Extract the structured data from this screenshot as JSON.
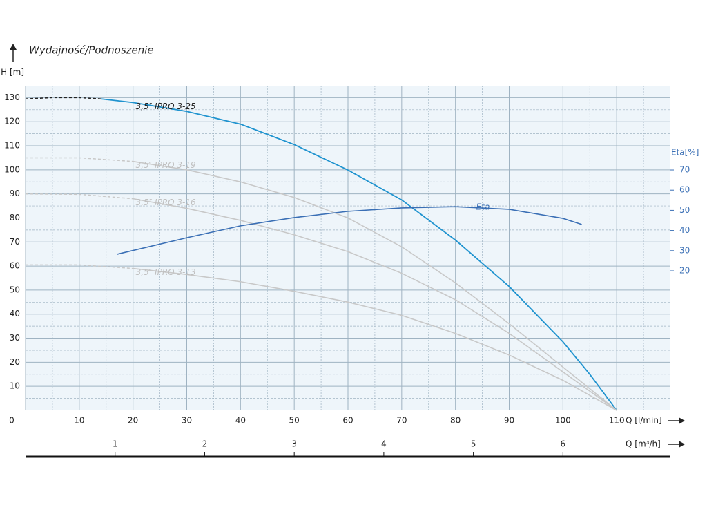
{
  "chart_data": {
    "type": "line",
    "title": "Wydajność/Podnoszenie",
    "ylabel": "H [m]",
    "y2label": "Eta[%]",
    "xlabel": "Q  [l/min]",
    "x2label": "Q  [m³/h]",
    "xlim": [
      0,
      120
    ],
    "xticks": [
      0,
      10,
      20,
      30,
      40,
      50,
      60,
      70,
      80,
      90,
      100,
      110
    ],
    "minor_xticks": [
      5,
      15,
      25,
      35,
      45,
      55,
      65,
      75,
      85,
      95,
      105,
      115
    ],
    "ylim": [
      0,
      135
    ],
    "yticks": [
      10,
      20,
      30,
      40,
      50,
      60,
      70,
      80,
      90,
      100,
      110,
      120,
      130
    ],
    "minor_yticks": [
      5,
      15,
      25,
      35,
      45,
      55,
      65,
      75,
      85,
      95,
      105,
      115,
      125
    ],
    "y2lim": [
      -49.2,
      111.8
    ],
    "y2ticks": [
      20,
      30,
      40,
      50,
      60,
      70
    ],
    "x2lim": [
      0,
      7.2
    ],
    "x2ticks": [
      1,
      2,
      3,
      4,
      5,
      6
    ],
    "grid": true,
    "series": [
      {
        "name": "3,5″ IPRO 3-25",
        "color": "#1f93cf",
        "label_color": "#222222",
        "x": [
          14,
          20,
          30,
          40,
          50,
          60,
          70,
          80,
          90,
          100,
          105,
          110
        ],
        "values": [
          129.5,
          128,
          124.3,
          119,
          110.5,
          99.9,
          87.5,
          70.8,
          51.5,
          28.5,
          15,
          0
        ],
        "dashed_part": {
          "color": "#222222",
          "x": [
            0,
            5,
            10,
            14
          ],
          "values": [
            129.5,
            130,
            130,
            129.5
          ]
        }
      },
      {
        "name": "3,5″ IPRO 3-19",
        "color": "#c8c8c8",
        "label_color": "#c0c0c0",
        "x": [
          20,
          30,
          40,
          50,
          60,
          70,
          80,
          90,
          100,
          110
        ],
        "values": [
          103.5,
          100,
          95,
          88.5,
          80,
          68,
          53,
          36,
          18,
          0
        ],
        "dashed_part": {
          "color": "#c8c8c8",
          "x": [
            0,
            10,
            20
          ],
          "values": [
            105,
            105,
            103.5
          ]
        }
      },
      {
        "name": "3,5″ IPRO 3-16",
        "color": "#c8c8c8",
        "label_color": "#c0c0c0",
        "x": [
          20,
          30,
          40,
          50,
          60,
          70,
          80,
          90,
          100,
          110
        ],
        "values": [
          88,
          84,
          79,
          73,
          66,
          57,
          46,
          32,
          16,
          0
        ],
        "dashed_part": {
          "color": "#c8c8c8",
          "x": [
            0,
            10,
            20
          ],
          "values": [
            90,
            89.8,
            88
          ]
        }
      },
      {
        "name": "3,5″ IPRO 3-13",
        "color": "#c8c8c8",
        "label_color": "#c0c0c0",
        "x": [
          20,
          30,
          40,
          50,
          60,
          70,
          80,
          90,
          100,
          110
        ],
        "values": [
          59,
          56.5,
          53.5,
          49.5,
          45,
          39.5,
          32,
          23,
          12.5,
          0
        ],
        "dashed_part": {
          "color": "#c8c8c8",
          "x": [
            0,
            10,
            20
          ],
          "values": [
            60.5,
            60.5,
            59
          ]
        }
      },
      {
        "name": "Eta",
        "color": "#3a6fb5",
        "label_color": "#3a6fb5",
        "axis": "y2",
        "x": [
          17,
          30,
          40,
          50,
          60,
          70,
          80,
          90,
          100,
          103.5
        ],
        "values": [
          28.2,
          36.4,
          42.3,
          46.4,
          49.5,
          51.2,
          51.8,
          50.5,
          46,
          43
        ]
      }
    ]
  }
}
